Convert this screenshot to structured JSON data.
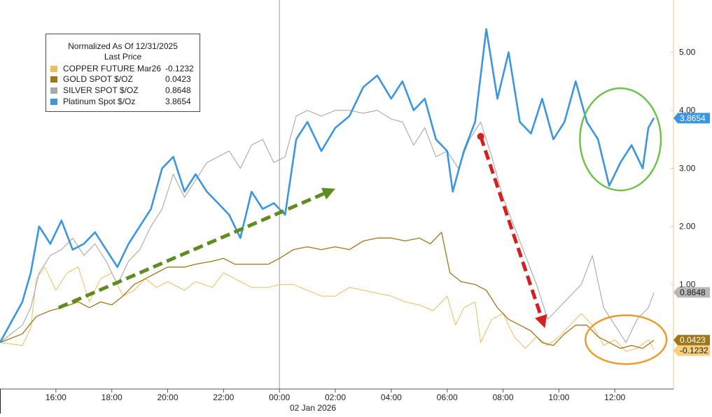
{
  "legend": {
    "title": "Normalized As Of 12/31/2025",
    "subtitle": "Last Price",
    "entries": [
      {
        "name": "COPPER FUTURE Mar26",
        "value": "-0.1232",
        "color": "#f0bc5e"
      },
      {
        "name": "GOLD SPOT $/OZ",
        "value": "0.0423",
        "color": "#a0761a"
      },
      {
        "name": "SILVER SPOT $/OZ",
        "value": "0.8648",
        "color": "#a8a8a8"
      },
      {
        "name": "Platinum Spot $/Oz",
        "value": "3.8654",
        "color": "#3b95df"
      }
    ]
  },
  "last_value_tags": [
    {
      "series": "Platinum Spot $/Oz",
      "text": "3.8654",
      "value": 3.8654,
      "bg": "#3b95df",
      "fg": "#ffffff"
    },
    {
      "series": "SILVER SPOT $/OZ",
      "text": "0.8648",
      "value": 0.8648,
      "bg": "#b8b8b8",
      "fg": "#1a1a1a"
    },
    {
      "series": "GOLD SPOT $/OZ",
      "text": "0.0423",
      "value": 0.0423,
      "bg": "#a0761a",
      "fg": "#ffffff"
    },
    {
      "series": "COPPER FUTURE Mar26",
      "text": "-0.1232",
      "value": -0.1232,
      "bg": "#f5cf7a",
      "fg": "#1a1a1a"
    }
  ],
  "chart_data": {
    "type": "line",
    "title": "",
    "xlabel": "",
    "ylabel": "",
    "x_ticks": [
      "16:00",
      "18:00",
      "20:00",
      "22:00",
      "00:00",
      "02:00",
      "04:00",
      "06:00",
      "08:00",
      "10:00",
      "12:00"
    ],
    "x_sublabel": "02 Jan 2026",
    "y_ticks": [
      "1.00",
      "2.00",
      "3.00",
      "4.00",
      "5.00"
    ],
    "ylim": [
      -0.8,
      5.9
    ],
    "x_range_hours": [
      14.0,
      38.1
    ],
    "grid": false,
    "legend_position": "top-left",
    "series": [
      {
        "name": "COPPER FUTURE Mar26",
        "color": "#f0bc5e",
        "points": [
          [
            14.0,
            0.0
          ],
          [
            14.8,
            -0.05
          ],
          [
            15.1,
            0.25
          ],
          [
            15.3,
            1.1
          ],
          [
            15.6,
            1.3
          ],
          [
            16.0,
            0.9
          ],
          [
            16.4,
            1.2
          ],
          [
            16.8,
            1.3
          ],
          [
            17.2,
            0.7
          ],
          [
            17.6,
            1.1
          ],
          [
            18.0,
            1.2
          ],
          [
            18.4,
            0.8
          ],
          [
            18.8,
            0.9
          ],
          [
            19.2,
            1.1
          ],
          [
            19.6,
            0.95
          ],
          [
            20.0,
            1.05
          ],
          [
            20.6,
            0.9
          ],
          [
            21.0,
            1.05
          ],
          [
            21.6,
            0.95
          ],
          [
            22.0,
            1.2
          ],
          [
            22.4,
            1.1
          ],
          [
            23.0,
            0.95
          ],
          [
            23.6,
            0.95
          ],
          [
            24.0,
            1.0
          ],
          [
            24.5,
            1.0
          ],
          [
            25.0,
            0.9
          ],
          [
            25.5,
            0.8
          ],
          [
            26.0,
            0.8
          ],
          [
            26.5,
            0.95
          ],
          [
            27.0,
            0.9
          ],
          [
            27.5,
            0.85
          ],
          [
            28.0,
            0.8
          ],
          [
            28.5,
            0.7
          ],
          [
            29.0,
            0.65
          ],
          [
            29.5,
            0.55
          ],
          [
            30.0,
            0.8
          ],
          [
            30.3,
            0.3
          ],
          [
            30.6,
            0.6
          ],
          [
            31.0,
            0.7
          ],
          [
            31.2,
            0.0
          ],
          [
            31.6,
            0.4
          ],
          [
            32.0,
            0.5
          ],
          [
            32.4,
            0.1
          ],
          [
            32.8,
            -0.1
          ],
          [
            33.2,
            0.1
          ],
          [
            33.6,
            -0.05
          ],
          [
            34.0,
            0.1
          ],
          [
            34.4,
            0.3
          ],
          [
            34.8,
            0.5
          ],
          [
            35.2,
            0.3
          ],
          [
            35.6,
            -0.05
          ],
          [
            36.0,
            0.05
          ],
          [
            36.4,
            -0.15
          ],
          [
            36.8,
            -0.1
          ],
          [
            37.2,
            0.05
          ],
          [
            37.4,
            -0.12
          ]
        ]
      },
      {
        "name": "GOLD SPOT $/OZ",
        "color": "#a0761a",
        "points": [
          [
            14.0,
            0.0
          ],
          [
            14.8,
            0.15
          ],
          [
            15.3,
            0.45
          ],
          [
            15.8,
            0.55
          ],
          [
            16.2,
            0.6
          ],
          [
            16.8,
            0.7
          ],
          [
            17.2,
            0.6
          ],
          [
            17.6,
            0.7
          ],
          [
            18.0,
            0.65
          ],
          [
            18.4,
            0.8
          ],
          [
            18.8,
            1.0
          ],
          [
            19.2,
            1.1
          ],
          [
            19.6,
            1.2
          ],
          [
            20.0,
            1.3
          ],
          [
            20.6,
            1.3
          ],
          [
            21.0,
            1.35
          ],
          [
            21.6,
            1.4
          ],
          [
            22.0,
            1.45
          ],
          [
            22.4,
            1.35
          ],
          [
            23.0,
            1.35
          ],
          [
            23.6,
            1.35
          ],
          [
            24.0,
            1.45
          ],
          [
            24.5,
            1.6
          ],
          [
            25.0,
            1.65
          ],
          [
            25.5,
            1.6
          ],
          [
            26.0,
            1.65
          ],
          [
            26.5,
            1.6
          ],
          [
            27.0,
            1.75
          ],
          [
            27.5,
            1.8
          ],
          [
            28.0,
            1.8
          ],
          [
            28.5,
            1.75
          ],
          [
            29.0,
            1.8
          ],
          [
            29.4,
            1.7
          ],
          [
            29.8,
            1.9
          ],
          [
            30.1,
            1.2
          ],
          [
            30.5,
            1.05
          ],
          [
            31.0,
            1.0
          ],
          [
            31.4,
            0.9
          ],
          [
            31.8,
            0.6
          ],
          [
            32.2,
            0.4
          ],
          [
            32.6,
            0.3
          ],
          [
            33.0,
            0.2
          ],
          [
            33.4,
            0.0
          ],
          [
            33.8,
            -0.05
          ],
          [
            34.2,
            0.15
          ],
          [
            34.6,
            0.3
          ],
          [
            35.0,
            0.3
          ],
          [
            35.4,
            0.1
          ],
          [
            35.8,
            0.0
          ],
          [
            36.2,
            -0.1
          ],
          [
            36.6,
            -0.05
          ],
          [
            37.0,
            -0.1
          ],
          [
            37.4,
            0.04
          ]
        ]
      },
      {
        "name": "SILVER SPOT $/OZ",
        "color": "#a8a8a8",
        "points": [
          [
            14.0,
            0.0
          ],
          [
            14.8,
            0.3
          ],
          [
            15.1,
            0.6
          ],
          [
            15.4,
            1.2
          ],
          [
            15.8,
            1.5
          ],
          [
            16.2,
            1.6
          ],
          [
            16.6,
            1.8
          ],
          [
            17.0,
            1.5
          ],
          [
            17.4,
            1.7
          ],
          [
            17.8,
            1.4
          ],
          [
            18.2,
            1.0
          ],
          [
            18.6,
            1.4
          ],
          [
            19.0,
            1.6
          ],
          [
            19.4,
            2.0
          ],
          [
            19.8,
            2.3
          ],
          [
            20.2,
            2.9
          ],
          [
            20.6,
            2.5
          ],
          [
            21.0,
            2.8
          ],
          [
            21.4,
            3.1
          ],
          [
            21.8,
            3.2
          ],
          [
            22.2,
            3.3
          ],
          [
            22.6,
            3.0
          ],
          [
            23.0,
            3.4
          ],
          [
            23.4,
            3.5
          ],
          [
            23.8,
            3.1
          ],
          [
            24.2,
            3.2
          ],
          [
            24.6,
            3.9
          ],
          [
            25.0,
            4.0
          ],
          [
            25.5,
            3.9
          ],
          [
            26.0,
            4.0
          ],
          [
            26.5,
            4.0
          ],
          [
            27.0,
            3.95
          ],
          [
            27.5,
            4.0
          ],
          [
            28.0,
            3.85
          ],
          [
            28.4,
            3.8
          ],
          [
            28.8,
            3.4
          ],
          [
            29.2,
            3.7
          ],
          [
            29.6,
            3.2
          ],
          [
            30.0,
            3.3
          ],
          [
            30.4,
            3.0
          ],
          [
            30.8,
            3.5
          ],
          [
            31.2,
            3.8
          ],
          [
            31.6,
            3.2
          ],
          [
            32.0,
            2.5
          ],
          [
            32.4,
            2.0
          ],
          [
            32.8,
            1.5
          ],
          [
            33.2,
            1.0
          ],
          [
            33.6,
            0.4
          ],
          [
            34.0,
            0.6
          ],
          [
            34.4,
            0.8
          ],
          [
            34.8,
            1.0
          ],
          [
            35.2,
            1.5
          ],
          [
            35.6,
            0.6
          ],
          [
            36.0,
            0.3
          ],
          [
            36.4,
            0.0
          ],
          [
            36.8,
            0.4
          ],
          [
            37.2,
            0.6
          ],
          [
            37.4,
            0.86
          ]
        ]
      },
      {
        "name": "Platinum Spot $/Oz",
        "color": "#3b95df",
        "points": [
          [
            14.0,
            0.0
          ],
          [
            14.8,
            0.7
          ],
          [
            15.1,
            1.2
          ],
          [
            15.4,
            2.0
          ],
          [
            15.8,
            1.7
          ],
          [
            16.2,
            2.1
          ],
          [
            16.6,
            1.6
          ],
          [
            17.0,
            1.7
          ],
          [
            17.4,
            1.9
          ],
          [
            17.8,
            1.6
          ],
          [
            18.2,
            1.3
          ],
          [
            18.6,
            1.7
          ],
          [
            19.0,
            2.0
          ],
          [
            19.4,
            2.3
          ],
          [
            19.8,
            3.0
          ],
          [
            20.2,
            3.2
          ],
          [
            20.6,
            2.6
          ],
          [
            21.0,
            2.9
          ],
          [
            21.4,
            2.6
          ],
          [
            21.8,
            2.4
          ],
          [
            22.2,
            2.2
          ],
          [
            22.6,
            1.8
          ],
          [
            23.0,
            2.6
          ],
          [
            23.4,
            2.3
          ],
          [
            23.8,
            2.4
          ],
          [
            24.2,
            2.2
          ],
          [
            24.6,
            3.5
          ],
          [
            25.0,
            3.8
          ],
          [
            25.5,
            3.3
          ],
          [
            26.0,
            3.7
          ],
          [
            26.5,
            3.9
          ],
          [
            27.0,
            4.4
          ],
          [
            27.5,
            4.6
          ],
          [
            28.0,
            4.2
          ],
          [
            28.4,
            4.5
          ],
          [
            28.8,
            4.0
          ],
          [
            29.2,
            4.2
          ],
          [
            29.6,
            3.5
          ],
          [
            30.0,
            3.3
          ],
          [
            30.2,
            2.6
          ],
          [
            30.6,
            3.3
          ],
          [
            31.0,
            3.8
          ],
          [
            31.4,
            5.4
          ],
          [
            31.8,
            4.2
          ],
          [
            32.2,
            5.0
          ],
          [
            32.6,
            3.8
          ],
          [
            33.0,
            3.6
          ],
          [
            33.4,
            4.2
          ],
          [
            33.8,
            3.5
          ],
          [
            34.2,
            3.8
          ],
          [
            34.6,
            4.5
          ],
          [
            35.0,
            3.8
          ],
          [
            35.4,
            3.5
          ],
          [
            35.8,
            2.7
          ],
          [
            36.2,
            3.1
          ],
          [
            36.6,
            3.4
          ],
          [
            37.0,
            3.0
          ],
          [
            37.2,
            3.7
          ],
          [
            37.4,
            3.87
          ]
        ]
      }
    ],
    "annotations": [
      {
        "kind": "dashed-arrow",
        "color": "#5e8c1f",
        "from": [
          16.1,
          0.6
        ],
        "to": [
          26.0,
          2.65
        ]
      },
      {
        "kind": "dashed-arrow",
        "color": "#d42020",
        "from": [
          31.2,
          3.55
        ],
        "to": [
          33.5,
          0.25
        ]
      },
      {
        "kind": "ellipse",
        "color": "#6fc24b",
        "center": [
          36.2,
          3.5
        ],
        "radius": [
          1.45,
          0.88
        ]
      },
      {
        "kind": "ellipse",
        "color": "#ef9b2c",
        "center": [
          36.4,
          0.05
        ],
        "radius": [
          1.45,
          0.42
        ]
      }
    ]
  }
}
